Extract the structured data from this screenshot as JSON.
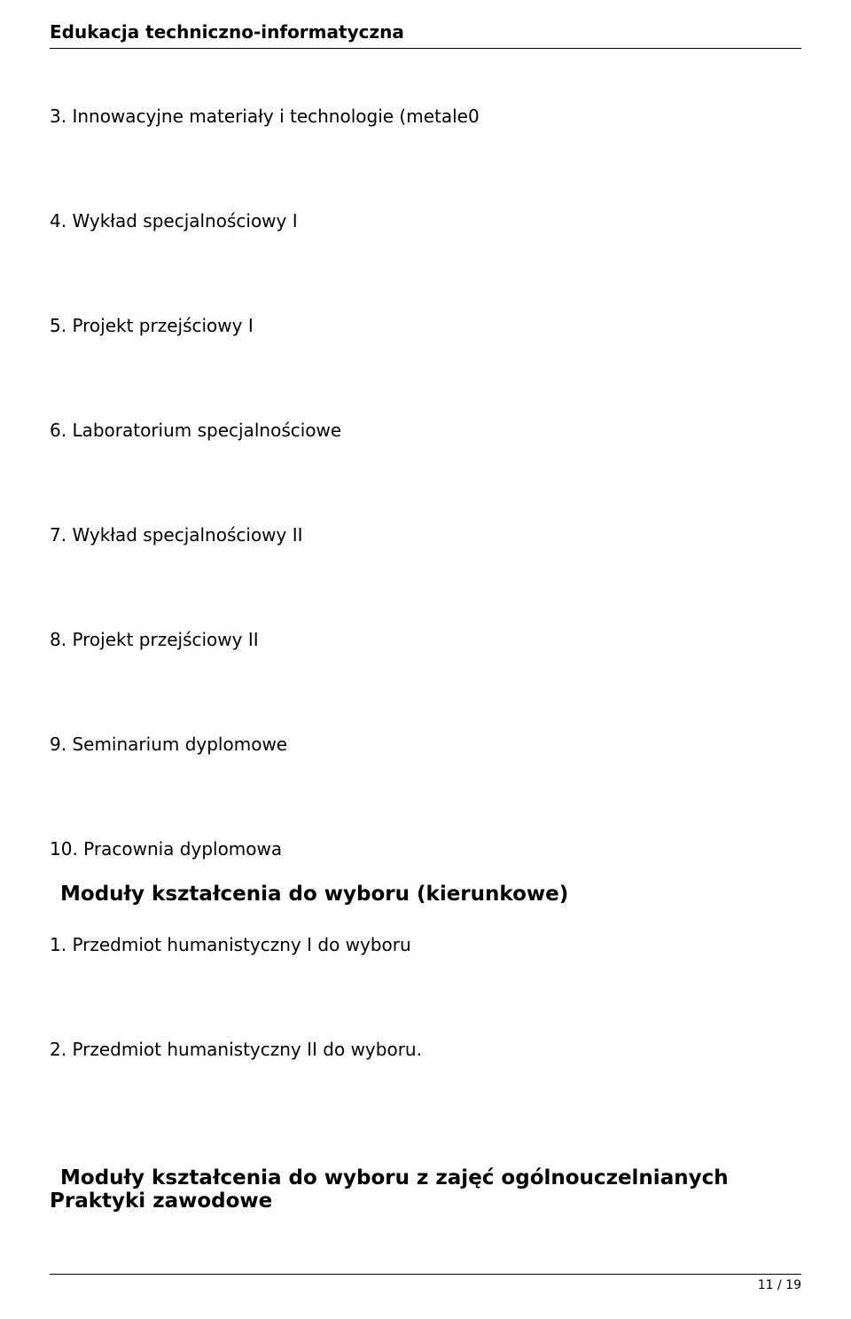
{
  "header": {
    "title": "Edukacja techniczno-informatyczna"
  },
  "items": {
    "i3": "3. Innowacyjne materiały i technologie (metale0",
    "i4": "4. Wykład specjalnościowy I",
    "i5": "5. Projekt przejściowy I",
    "i6": "6. Laboratorium specjalnościowe",
    "i7": "7. Wykład specjalnościowy II",
    "i8": "8. Projekt przejściowy II",
    "i9": "9. Seminarium dyplomowe",
    "i10": "10. Pracownia dyplomowa"
  },
  "section_kierunkowe": "Moduły kształcenia do wyboru (kierunkowe)",
  "kierunkowe": {
    "k1": "1. Przedmiot humanistyczny I do wyboru",
    "k2": "2. Przedmiot humanistyczny II do wyboru."
  },
  "section_ogolno": "Moduły kształcenia do wyboru z zajęć ogólnouczelnianych",
  "praktyki": "Praktyki zawodowe",
  "footer": {
    "page": "11 / 19"
  }
}
